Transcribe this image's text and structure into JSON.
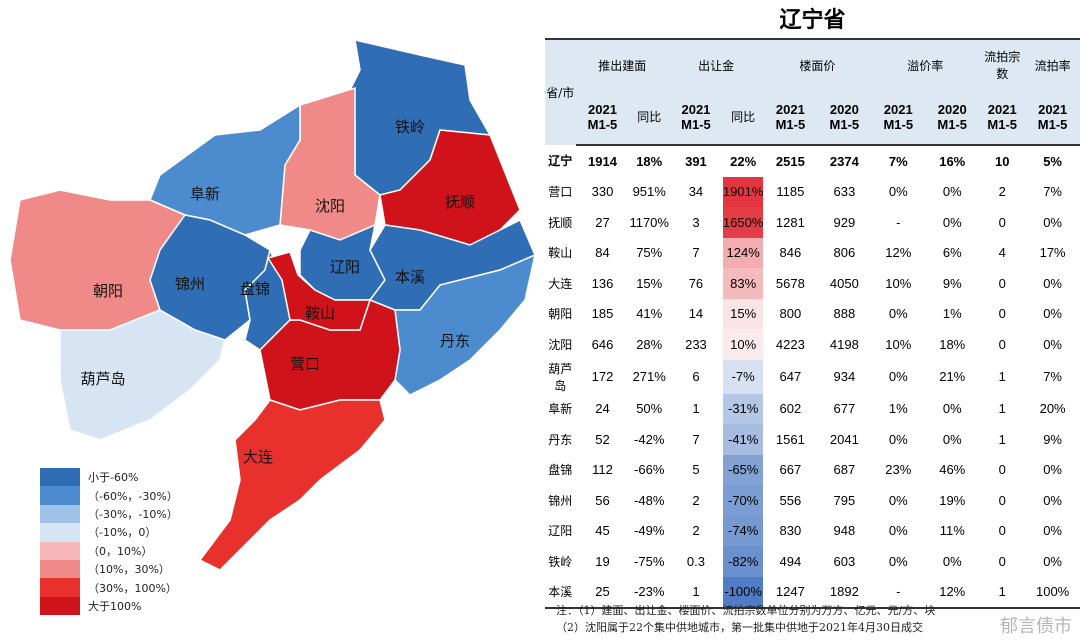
{
  "title": "辽宁省",
  "colors": {
    "dark_blue": "#2f6db5",
    "mid_blue": "#4d8bcf",
    "light_blue": "#9fc1e7",
    "pale_blue": "#d7e4f3",
    "pale_red": "#f7b6b8",
    "light_red": "#f08a88",
    "red": "#e8312d",
    "dark_red": "#d0121b"
  },
  "map": {
    "regions": [
      {
        "name": "铁岭",
        "class": "dark_blue"
      },
      {
        "name": "沈阳",
        "class": "light_red"
      },
      {
        "name": "抚顺",
        "class": "dark_red"
      },
      {
        "name": "阜新",
        "class": "mid_blue"
      },
      {
        "name": "朝阳",
        "class": "light_red"
      },
      {
        "name": "锦州",
        "class": "dark_blue"
      },
      {
        "name": "葫芦岛",
        "class": "pale_blue"
      },
      {
        "name": "盘锦",
        "class": "dark_blue"
      },
      {
        "name": "辽阳",
        "class": "dark_blue"
      },
      {
        "name": "本溪",
        "class": "dark_blue"
      },
      {
        "name": "丹东",
        "class": "mid_blue"
      },
      {
        "name": "营口",
        "class": "dark_red"
      },
      {
        "name": "鞍山",
        "class": "dark_red"
      },
      {
        "name": "大连",
        "class": "red"
      }
    ],
    "legend": [
      {
        "label": "小于-60%",
        "class": "dark_blue"
      },
      {
        "label": "（-60%，-30%）",
        "class": "mid_blue"
      },
      {
        "label": "（-30%，-10%）",
        "class": "light_blue"
      },
      {
        "label": "（-10%，0）",
        "class": "pale_blue"
      },
      {
        "label": "（0，10%）",
        "class": "pale_red"
      },
      {
        "label": "（10%，30%）",
        "class": "light_red"
      },
      {
        "label": "（30%，100%）",
        "class": "red"
      },
      {
        "label": "大于100%",
        "class": "dark_red"
      }
    ]
  },
  "table": {
    "header_row1": [
      "省/市",
      "推出建面",
      "出让金",
      "楼面价",
      "溢价率",
      "流拍宗数",
      "流拍率"
    ],
    "header_row2": [
      "2021 M1-5",
      "同比",
      "2021 M1-5",
      "同比",
      "2021 M1-5",
      "2020 M1-5",
      "2021 M1-5",
      "2020 M1-5",
      "2021 M1-5",
      "2021 M1-5"
    ],
    "rows": [
      {
        "name": "辽宁",
        "cells": [
          "1914",
          "18%",
          "391",
          "22%",
          "2515",
          "2374",
          "7%",
          "16%",
          "10",
          "5%"
        ],
        "yoy": 22
      },
      {
        "name": "营口",
        "cells": [
          "330",
          "951%",
          "34",
          "1901%",
          "1185",
          "633",
          "0%",
          "0%",
          "2",
          "7%"
        ],
        "yoy": 1901
      },
      {
        "name": "抚顺",
        "cells": [
          "27",
          "1170%",
          "3",
          "1650%",
          "1281",
          "929",
          "-",
          "0%",
          "0",
          "0%"
        ],
        "yoy": 1650
      },
      {
        "name": "鞍山",
        "cells": [
          "84",
          "75%",
          "7",
          "124%",
          "846",
          "806",
          "12%",
          "6%",
          "4",
          "17%"
        ],
        "yoy": 124
      },
      {
        "name": "大连",
        "cells": [
          "136",
          "15%",
          "76",
          "83%",
          "5678",
          "4050",
          "10%",
          "9%",
          "0",
          "0%"
        ],
        "yoy": 83
      },
      {
        "name": "朝阳",
        "cells": [
          "185",
          "41%",
          "14",
          "15%",
          "800",
          "888",
          "0%",
          "1%",
          "0",
          "0%"
        ],
        "yoy": 15
      },
      {
        "name": "沈阳",
        "cells": [
          "646",
          "28%",
          "233",
          "10%",
          "4223",
          "4198",
          "10%",
          "18%",
          "0",
          "0%"
        ],
        "yoy": 10
      },
      {
        "name": "葫芦岛",
        "cells": [
          "172",
          "271%",
          "6",
          "-7%",
          "647",
          "934",
          "0%",
          "21%",
          "1",
          "7%"
        ],
        "yoy": -7
      },
      {
        "name": "阜新",
        "cells": [
          "24",
          "50%",
          "1",
          "-31%",
          "602",
          "677",
          "1%",
          "0%",
          "1",
          "20%"
        ],
        "yoy": -31
      },
      {
        "name": "丹东",
        "cells": [
          "52",
          "-42%",
          "7",
          "-41%",
          "1561",
          "2041",
          "0%",
          "0%",
          "1",
          "9%"
        ],
        "yoy": -41
      },
      {
        "name": "盘锦",
        "cells": [
          "112",
          "-66%",
          "5",
          "-65%",
          "667",
          "687",
          "23%",
          "46%",
          "0",
          "0%"
        ],
        "yoy": -65
      },
      {
        "name": "锦州",
        "cells": [
          "56",
          "-48%",
          "2",
          "-70%",
          "556",
          "795",
          "0%",
          "19%",
          "0",
          "0%"
        ],
        "yoy": -70
      },
      {
        "name": "辽阳",
        "cells": [
          "45",
          "-49%",
          "2",
          "-74%",
          "830",
          "948",
          "0%",
          "11%",
          "0",
          "0%"
        ],
        "yoy": -74
      },
      {
        "name": "铁岭",
        "cells": [
          "19",
          "-75%",
          "0.3",
          "-82%",
          "494",
          "603",
          "0%",
          "0%",
          "0",
          "0%"
        ],
        "yoy": -82
      },
      {
        "name": "本溪",
        "cells": [
          "25",
          "-23%",
          "1",
          "-100%",
          "1247",
          "1892",
          "-",
          "12%",
          "1",
          "100%"
        ],
        "yoy": -100
      }
    ]
  },
  "notes": [
    "注：（1）建面、出让金、楼面价、流拍宗数单位分别为万方、亿元、元/方、块",
    "（2）沈阳属于22个集中供地城市，第一批集中供地于2021年4月30日成交"
  ],
  "watermark": "郁言债市"
}
